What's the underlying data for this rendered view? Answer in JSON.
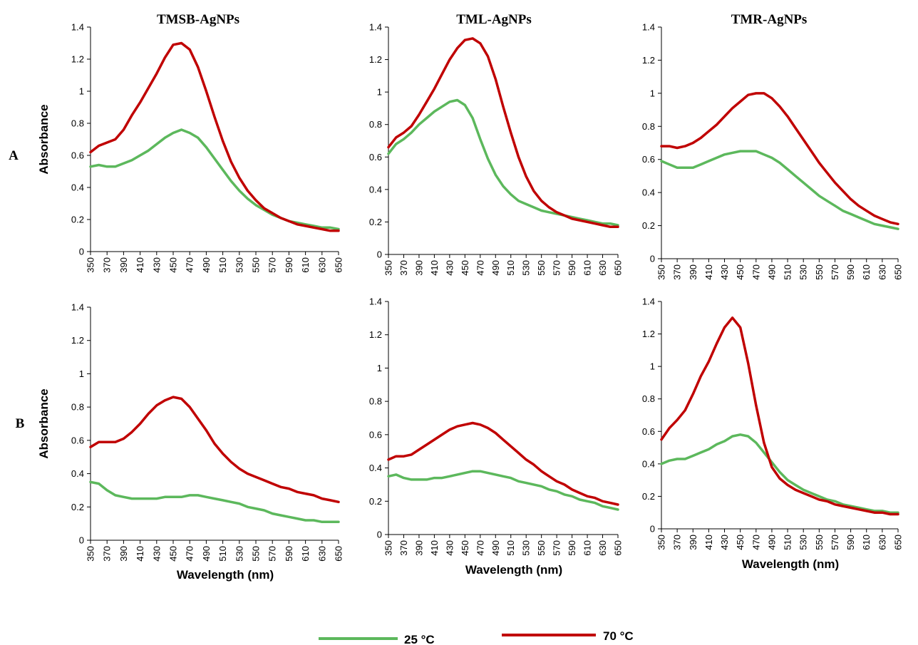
{
  "column_titles": [
    "TMSB-AgNPs",
    "TML-AgNPs",
    "TMR-AgNPs"
  ],
  "row_labels": [
    "A",
    "B"
  ],
  "legend": [
    {
      "label": "25 °C",
      "color": "#5cb85c"
    },
    {
      "label": "70 °C",
      "color": "#c00000"
    }
  ],
  "chart_data": [
    {
      "type": "line",
      "row": "A",
      "column": "TMSB-AgNPs",
      "xlabel": "",
      "ylabel": "Absorbance",
      "xlim": [
        350,
        650
      ],
      "ylim": [
        0,
        1.4
      ],
      "xticks": [
        "350",
        "370",
        "390",
        "410",
        "430",
        "450",
        "470",
        "490",
        "510",
        "530",
        "550",
        "570",
        "590",
        "610",
        "630",
        "650"
      ],
      "yticks": [
        "0",
        "0.2",
        "0.4",
        "0.6",
        "0.8",
        "1",
        "1.2",
        "1.4"
      ],
      "series": [
        {
          "name": "25 °C",
          "color": "#5cb85c",
          "x": [
            350,
            360,
            370,
            380,
            390,
            400,
            410,
            420,
            430,
            440,
            450,
            460,
            470,
            480,
            490,
            500,
            510,
            520,
            530,
            540,
            550,
            560,
            570,
            580,
            590,
            600,
            610,
            620,
            630,
            640,
            650
          ],
          "y": [
            0.53,
            0.54,
            0.53,
            0.53,
            0.55,
            0.57,
            0.6,
            0.63,
            0.67,
            0.71,
            0.74,
            0.76,
            0.74,
            0.71,
            0.65,
            0.58,
            0.51,
            0.44,
            0.38,
            0.33,
            0.29,
            0.26,
            0.23,
            0.21,
            0.19,
            0.18,
            0.17,
            0.16,
            0.15,
            0.15,
            0.14
          ]
        },
        {
          "name": "70 °C",
          "color": "#c00000",
          "x": [
            350,
            360,
            370,
            380,
            390,
            400,
            410,
            420,
            430,
            440,
            450,
            460,
            470,
            480,
            490,
            500,
            510,
            520,
            530,
            540,
            550,
            560,
            570,
            580,
            590,
            600,
            610,
            620,
            630,
            640,
            650
          ],
          "y": [
            0.62,
            0.66,
            0.68,
            0.7,
            0.76,
            0.85,
            0.93,
            1.02,
            1.11,
            1.21,
            1.29,
            1.3,
            1.26,
            1.15,
            1.0,
            0.84,
            0.69,
            0.56,
            0.46,
            0.38,
            0.32,
            0.27,
            0.24,
            0.21,
            0.19,
            0.17,
            0.16,
            0.15,
            0.14,
            0.13,
            0.13
          ]
        }
      ]
    },
    {
      "type": "line",
      "row": "A",
      "column": "TML-AgNPs",
      "xlabel": "",
      "ylabel": "",
      "xlim": [
        350,
        650
      ],
      "ylim": [
        0,
        1.4
      ],
      "xticks": [
        "350",
        "370",
        "390",
        "410",
        "430",
        "450",
        "470",
        "490",
        "510",
        "530",
        "550",
        "570",
        "590",
        "610",
        "630",
        "650"
      ],
      "yticks": [
        "0",
        "0.2",
        "0.4",
        "0.6",
        "0.8",
        "1",
        "1.2",
        "1.4"
      ],
      "series": [
        {
          "name": "25 °C",
          "color": "#5cb85c",
          "x": [
            350,
            360,
            370,
            380,
            390,
            400,
            410,
            420,
            430,
            440,
            450,
            460,
            470,
            480,
            490,
            500,
            510,
            520,
            530,
            540,
            550,
            560,
            570,
            580,
            590,
            600,
            610,
            620,
            630,
            640,
            650
          ],
          "y": [
            0.62,
            0.68,
            0.71,
            0.75,
            0.8,
            0.84,
            0.88,
            0.91,
            0.94,
            0.95,
            0.92,
            0.84,
            0.71,
            0.59,
            0.49,
            0.42,
            0.37,
            0.33,
            0.31,
            0.29,
            0.27,
            0.26,
            0.25,
            0.24,
            0.23,
            0.22,
            0.21,
            0.2,
            0.19,
            0.19,
            0.18
          ]
        },
        {
          "name": "70 °C",
          "color": "#c00000",
          "x": [
            350,
            360,
            370,
            380,
            390,
            400,
            410,
            420,
            430,
            440,
            450,
            460,
            470,
            480,
            490,
            500,
            510,
            520,
            530,
            540,
            550,
            560,
            570,
            580,
            590,
            600,
            610,
            620,
            630,
            640,
            650
          ],
          "y": [
            0.66,
            0.72,
            0.75,
            0.79,
            0.86,
            0.94,
            1.02,
            1.11,
            1.2,
            1.27,
            1.32,
            1.33,
            1.3,
            1.22,
            1.08,
            0.91,
            0.75,
            0.6,
            0.48,
            0.39,
            0.33,
            0.29,
            0.26,
            0.24,
            0.22,
            0.21,
            0.2,
            0.19,
            0.18,
            0.17,
            0.17
          ]
        }
      ]
    },
    {
      "type": "line",
      "row": "A",
      "column": "TMR-AgNPs",
      "xlabel": "",
      "ylabel": "",
      "xlim": [
        350,
        650
      ],
      "ylim": [
        0,
        1.4
      ],
      "xticks": [
        "350",
        "370",
        "390",
        "410",
        "430",
        "450",
        "470",
        "490",
        "510",
        "530",
        "550",
        "570",
        "590",
        "610",
        "630",
        "650"
      ],
      "yticks": [
        "0",
        "0.2",
        "0.4",
        "0.6",
        "0.8",
        "1",
        "1.2",
        "1.4"
      ],
      "series": [
        {
          "name": "25 °C",
          "color": "#5cb85c",
          "x": [
            350,
            360,
            370,
            380,
            390,
            400,
            410,
            420,
            430,
            440,
            450,
            460,
            470,
            480,
            490,
            500,
            510,
            520,
            530,
            540,
            550,
            560,
            570,
            580,
            590,
            600,
            610,
            620,
            630,
            640,
            650
          ],
          "y": [
            0.59,
            0.57,
            0.55,
            0.55,
            0.55,
            0.57,
            0.59,
            0.61,
            0.63,
            0.64,
            0.65,
            0.65,
            0.65,
            0.63,
            0.61,
            0.58,
            0.54,
            0.5,
            0.46,
            0.42,
            0.38,
            0.35,
            0.32,
            0.29,
            0.27,
            0.25,
            0.23,
            0.21,
            0.2,
            0.19,
            0.18
          ]
        },
        {
          "name": "70 °C",
          "color": "#c00000",
          "x": [
            350,
            360,
            370,
            380,
            390,
            400,
            410,
            420,
            430,
            440,
            450,
            460,
            470,
            480,
            490,
            500,
            510,
            520,
            530,
            540,
            550,
            560,
            570,
            580,
            590,
            600,
            610,
            620,
            630,
            640,
            650
          ],
          "y": [
            0.68,
            0.68,
            0.67,
            0.68,
            0.7,
            0.73,
            0.77,
            0.81,
            0.86,
            0.91,
            0.95,
            0.99,
            1.0,
            1.0,
            0.97,
            0.92,
            0.86,
            0.79,
            0.72,
            0.65,
            0.58,
            0.52,
            0.46,
            0.41,
            0.36,
            0.32,
            0.29,
            0.26,
            0.24,
            0.22,
            0.21
          ]
        }
      ]
    },
    {
      "type": "line",
      "row": "B",
      "column": "TMSB-AgNPs",
      "xlabel": "Wavelength (nm)",
      "ylabel": "Absorbance",
      "xlim": [
        350,
        650
      ],
      "ylim": [
        0,
        1.4
      ],
      "xticks": [
        "350",
        "370",
        "390",
        "410",
        "430",
        "450",
        "470",
        "490",
        "510",
        "530",
        "550",
        "570",
        "590",
        "610",
        "630",
        "650"
      ],
      "yticks": [
        "0",
        "0.2",
        "0.4",
        "0.6",
        "0.8",
        "1",
        "1.2",
        "1.4"
      ],
      "series": [
        {
          "name": "25 °C",
          "color": "#5cb85c",
          "x": [
            350,
            360,
            370,
            380,
            390,
            400,
            410,
            420,
            430,
            440,
            450,
            460,
            470,
            480,
            490,
            500,
            510,
            520,
            530,
            540,
            550,
            560,
            570,
            580,
            590,
            600,
            610,
            620,
            630,
            640,
            650
          ],
          "y": [
            0.35,
            0.34,
            0.3,
            0.27,
            0.26,
            0.25,
            0.25,
            0.25,
            0.25,
            0.26,
            0.26,
            0.26,
            0.27,
            0.27,
            0.26,
            0.25,
            0.24,
            0.23,
            0.22,
            0.2,
            0.19,
            0.18,
            0.16,
            0.15,
            0.14,
            0.13,
            0.12,
            0.12,
            0.11,
            0.11,
            0.11
          ]
        },
        {
          "name": "70 °C",
          "color": "#c00000",
          "x": [
            350,
            360,
            370,
            380,
            390,
            400,
            410,
            420,
            430,
            440,
            450,
            460,
            470,
            480,
            490,
            500,
            510,
            520,
            530,
            540,
            550,
            560,
            570,
            580,
            590,
            600,
            610,
            620,
            630,
            640,
            650
          ],
          "y": [
            0.56,
            0.59,
            0.59,
            0.59,
            0.61,
            0.65,
            0.7,
            0.76,
            0.81,
            0.84,
            0.86,
            0.85,
            0.8,
            0.73,
            0.66,
            0.58,
            0.52,
            0.47,
            0.43,
            0.4,
            0.38,
            0.36,
            0.34,
            0.32,
            0.31,
            0.29,
            0.28,
            0.27,
            0.25,
            0.24,
            0.23
          ]
        }
      ]
    },
    {
      "type": "line",
      "row": "B",
      "column": "TML-AgNPs",
      "xlabel": "Wavelength (nm)",
      "ylabel": "",
      "xlim": [
        350,
        650
      ],
      "ylim": [
        0,
        1.4
      ],
      "xticks": [
        "350",
        "370",
        "390",
        "410",
        "430",
        "450",
        "470",
        "490",
        "510",
        "530",
        "550",
        "570",
        "590",
        "610",
        "630",
        "650"
      ],
      "yticks": [
        "0",
        "0.2",
        "0.4",
        "0.6",
        "0.8",
        "1",
        "1.2",
        "1.4"
      ],
      "series": [
        {
          "name": "25 °C",
          "color": "#5cb85c",
          "x": [
            350,
            360,
            370,
            380,
            390,
            400,
            410,
            420,
            430,
            440,
            450,
            460,
            470,
            480,
            490,
            500,
            510,
            520,
            530,
            540,
            550,
            560,
            570,
            580,
            590,
            600,
            610,
            620,
            630,
            640,
            650
          ],
          "y": [
            0.35,
            0.36,
            0.34,
            0.33,
            0.33,
            0.33,
            0.34,
            0.34,
            0.35,
            0.36,
            0.37,
            0.38,
            0.38,
            0.37,
            0.36,
            0.35,
            0.34,
            0.32,
            0.31,
            0.3,
            0.29,
            0.27,
            0.26,
            0.24,
            0.23,
            0.21,
            0.2,
            0.19,
            0.17,
            0.16,
            0.15
          ]
        },
        {
          "name": "70 °C",
          "color": "#c00000",
          "x": [
            350,
            360,
            370,
            380,
            390,
            400,
            410,
            420,
            430,
            440,
            450,
            460,
            470,
            480,
            490,
            500,
            510,
            520,
            530,
            540,
            550,
            560,
            570,
            580,
            590,
            600,
            610,
            620,
            630,
            640,
            650
          ],
          "y": [
            0.45,
            0.47,
            0.47,
            0.48,
            0.51,
            0.54,
            0.57,
            0.6,
            0.63,
            0.65,
            0.66,
            0.67,
            0.66,
            0.64,
            0.61,
            0.57,
            0.53,
            0.49,
            0.45,
            0.42,
            0.38,
            0.35,
            0.32,
            0.3,
            0.27,
            0.25,
            0.23,
            0.22,
            0.2,
            0.19,
            0.18
          ]
        }
      ]
    },
    {
      "type": "line",
      "row": "B",
      "column": "TMR-AgNPs",
      "xlabel": "Wavelength (nm)",
      "ylabel": "",
      "xlim": [
        350,
        650
      ],
      "ylim": [
        0,
        1.4
      ],
      "xticks": [
        "350",
        "370",
        "390",
        "410",
        "430",
        "450",
        "470",
        "490",
        "510",
        "530",
        "550",
        "570",
        "590",
        "610",
        "630",
        "650"
      ],
      "yticks": [
        "0",
        "0.2",
        "0.4",
        "0.6",
        "0.8",
        "1",
        "1.2",
        "1.4"
      ],
      "series": [
        {
          "name": "25 °C",
          "color": "#5cb85c",
          "x": [
            350,
            360,
            370,
            380,
            390,
            400,
            410,
            420,
            430,
            440,
            450,
            460,
            470,
            480,
            490,
            500,
            510,
            520,
            530,
            540,
            550,
            560,
            570,
            580,
            590,
            600,
            610,
            620,
            630,
            640,
            650
          ],
          "y": [
            0.4,
            0.42,
            0.43,
            0.43,
            0.45,
            0.47,
            0.49,
            0.52,
            0.54,
            0.57,
            0.58,
            0.57,
            0.53,
            0.47,
            0.41,
            0.35,
            0.3,
            0.27,
            0.24,
            0.22,
            0.2,
            0.18,
            0.17,
            0.15,
            0.14,
            0.13,
            0.12,
            0.11,
            0.11,
            0.1,
            0.1
          ]
        },
        {
          "name": "70 °C",
          "color": "#c00000",
          "x": [
            350,
            360,
            370,
            380,
            390,
            400,
            410,
            420,
            430,
            440,
            450,
            460,
            470,
            480,
            490,
            500,
            510,
            520,
            530,
            540,
            550,
            560,
            570,
            580,
            590,
            600,
            610,
            620,
            630,
            640,
            650
          ],
          "y": [
            0.55,
            0.62,
            0.67,
            0.73,
            0.83,
            0.94,
            1.03,
            1.14,
            1.24,
            1.3,
            1.24,
            1.02,
            0.76,
            0.53,
            0.38,
            0.31,
            0.27,
            0.24,
            0.22,
            0.2,
            0.18,
            0.17,
            0.15,
            0.14,
            0.13,
            0.12,
            0.11,
            0.1,
            0.1,
            0.09,
            0.09
          ]
        }
      ]
    }
  ]
}
